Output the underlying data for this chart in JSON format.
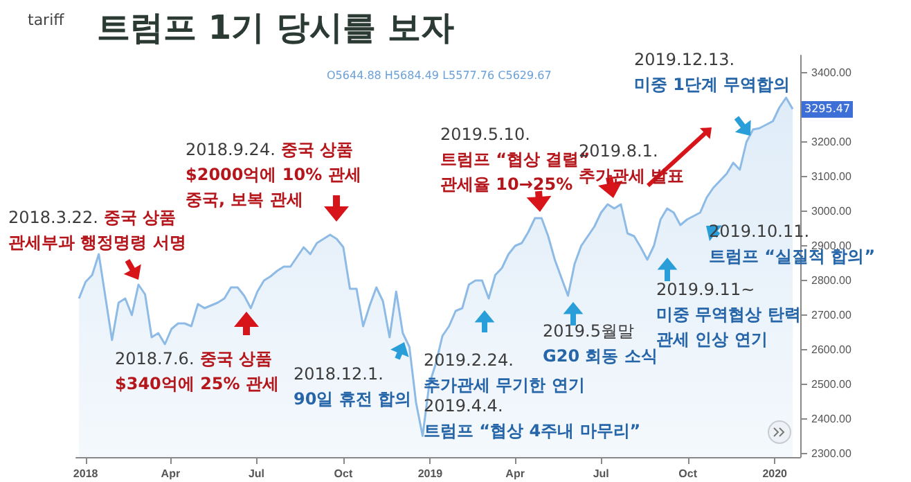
{
  "chart_data": {
    "type": "area",
    "title": "트럼프 1기 당시를 보자",
    "x": [
      "2017-12-25",
      "2018-01-01",
      "2018-01-08",
      "2018-01-15",
      "2018-01-29",
      "2018-02-05",
      "2018-02-12",
      "2018-02-19",
      "2018-02-26",
      "2018-03-05",
      "2018-03-12",
      "2018-03-19",
      "2018-03-26",
      "2018-04-02",
      "2018-04-09",
      "2018-04-16",
      "2018-04-23",
      "2018-04-30",
      "2018-05-07",
      "2018-05-21",
      "2018-05-28",
      "2018-06-04",
      "2018-06-11",
      "2018-06-18",
      "2018-06-25",
      "2018-07-02",
      "2018-07-09",
      "2018-07-16",
      "2018-07-23",
      "2018-07-30",
      "2018-08-06",
      "2018-08-13",
      "2018-08-20",
      "2018-08-27",
      "2018-09-03",
      "2018-09-17",
      "2018-09-24",
      "2018-10-01",
      "2018-10-08",
      "2018-10-15",
      "2018-10-22",
      "2018-10-29",
      "2018-11-05",
      "2018-11-12",
      "2018-11-19",
      "2018-11-26",
      "2018-12-03",
      "2018-12-10",
      "2018-12-17",
      "2018-12-24",
      "2018-12-31",
      "2019-01-07",
      "2019-01-14",
      "2019-01-21",
      "2019-01-28",
      "2019-02-04",
      "2019-02-11",
      "2019-02-18",
      "2019-02-25",
      "2019-03-04",
      "2019-03-11",
      "2019-03-18",
      "2019-03-25",
      "2019-04-01",
      "2019-04-08",
      "2019-04-15",
      "2019-04-22",
      "2019-04-29",
      "2019-05-06",
      "2019-05-13",
      "2019-05-27",
      "2019-06-03",
      "2019-06-10",
      "2019-06-17",
      "2019-06-24",
      "2019-07-01",
      "2019-07-08",
      "2019-07-15",
      "2019-07-22",
      "2019-07-29",
      "2019-08-05",
      "2019-08-12",
      "2019-08-19",
      "2019-08-26",
      "2019-09-02",
      "2019-09-09",
      "2019-09-16",
      "2019-09-23",
      "2019-09-30",
      "2019-10-14",
      "2019-10-21",
      "2019-10-28",
      "2019-11-11",
      "2019-11-18",
      "2019-11-25",
      "2019-12-02",
      "2019-12-09",
      "2019-12-16",
      "2019-12-30",
      "2020-01-06",
      "2020-01-13",
      "2020-01-20"
    ],
    "series": [
      {
        "color": "#8dbbe6",
        "values": [
          2748,
          2796,
          2816,
          2876,
          2628,
          2736,
          2748,
          2700,
          2788,
          2760,
          2636,
          2648,
          2616,
          2660,
          2676,
          2676,
          2668,
          2732,
          2720,
          2736,
          2748,
          2780,
          2780,
          2756,
          2720,
          2768,
          2800,
          2812,
          2828,
          2840,
          2840,
          2868,
          2896,
          2876,
          2908,
          2932,
          2920,
          2896,
          2776,
          2776,
          2668,
          2728,
          2780,
          2740,
          2636,
          2768,
          2648,
          2608,
          2448,
          2351,
          2500,
          2560,
          2640,
          2668,
          2712,
          2720,
          2788,
          2800,
          2800,
          2748,
          2816,
          2836,
          2876,
          2900,
          2908,
          2940,
          2980,
          2980,
          2928,
          2860,
          2756,
          2848,
          2900,
          2928,
          2956,
          2996,
          3020,
          3008,
          3020,
          2936,
          2928,
          2896,
          2860,
          2900,
          2976,
          3008,
          2996,
          2960,
          2976,
          2996,
          3040,
          3068,
          3108,
          3140,
          3120,
          3200,
          3236,
          3240,
          3260,
          3300,
          3328,
          3295
        ]
      }
    ],
    "xlim": [
      "2017-12-22",
      "2020-01-28"
    ],
    "xticks": [
      {
        "value": "2018-01-01",
        "label": "2018"
      },
      {
        "value": "2018-04-01",
        "label": "Apr"
      },
      {
        "value": "2018-07-01",
        "label": "Jul"
      },
      {
        "value": "2018-10-01",
        "label": "Oct"
      },
      {
        "value": "2019-01-01",
        "label": "2019"
      },
      {
        "value": "2019-04-01",
        "label": "Apr"
      },
      {
        "value": "2019-07-01",
        "label": "Jul"
      },
      {
        "value": "2019-10-01",
        "label": "Oct"
      },
      {
        "value": "2020-01-01",
        "label": "2020"
      }
    ],
    "ylim": [
      2290,
      3450
    ],
    "yticks": [
      {
        "value": 2300,
        "label": "2300.00"
      },
      {
        "value": 2400,
        "label": "2400.00"
      },
      {
        "value": 2500,
        "label": "2500.00"
      },
      {
        "value": 2600,
        "label": "2600.00"
      },
      {
        "value": 2700,
        "label": "2700.00"
      },
      {
        "value": 2800,
        "label": "2800.00"
      },
      {
        "value": 2900,
        "label": "2900.00"
      },
      {
        "value": 3000,
        "label": "3000.00"
      },
      {
        "value": 3100,
        "label": "3100.00"
      },
      {
        "value": 3200,
        "label": "3200.00"
      },
      {
        "value": 3300,
        "label": null
      },
      {
        "value": 3400,
        "label": "3400.00"
      }
    ],
    "grid": false,
    "annotations": [
      "2018.3.22. 중국 상품\n관세부과 행정명령 서명",
      "2018.7.6. 중국 상품\n$340억에 25% 관세",
      "2018.9.24. 중국 상품\n$2000억에 10% 관세\n중국, 보복 관세",
      "2018.12.1.\n90일 휴전 합의",
      "2019.2.24.\n추가관세 무기한 연기",
      "2019.4.4.\n트럼프 “협상 4주내 마무리”",
      "2019.5.10.\n트럼프 “협상 결렬”\n관세율 10→25%",
      "2019.5월말\nG20 회동 소식",
      "2019.8.1.\n추가관세 발표",
      "2019.9.11~\n미중 무역협상 탄력\n관세 인상 연기",
      "2019.10.11.\n트럼프 “실질적 합의”",
      "2019.12.13.\n미중 1단계 무역합의",
      "tariff",
      "O5644.88 H5684.49 L5577.76 C5629.67",
      {
        "text": "3295.47",
        "x": "2020-01-20",
        "y": 3295.47
      }
    ]
  }
}
